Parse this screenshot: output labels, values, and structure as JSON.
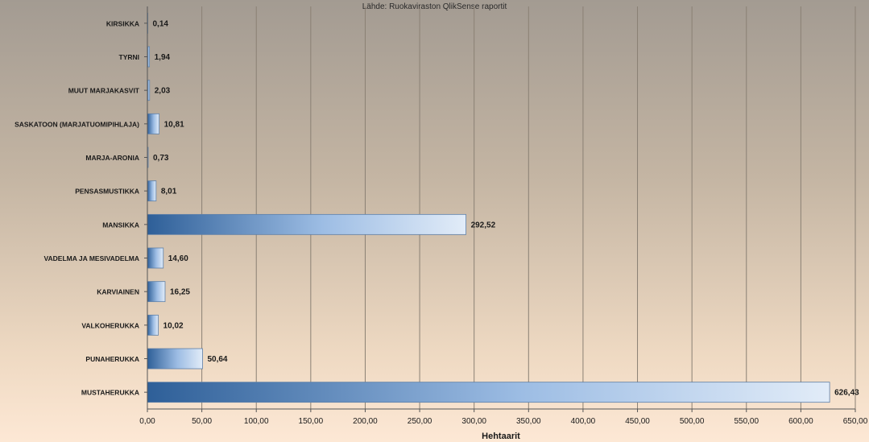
{
  "chart_data": {
    "type": "bar",
    "orientation": "horizontal",
    "subtitle": "Lähde: Ruokaviraston QlikSense raportit",
    "xlabel": "Hehtaarit",
    "ylabel": "",
    "xlim": [
      0,
      650
    ],
    "x_ticks": [
      "0,00",
      "50,00",
      "100,00",
      "150,00",
      "200,00",
      "250,00",
      "300,00",
      "350,00",
      "400,00",
      "450,00",
      "500,00",
      "550,00",
      "600,00",
      "650,00"
    ],
    "grid": "vertical",
    "legend": "none",
    "categories": [
      "KIRSIKKA",
      "TYRNI",
      "MUUT MARJAKASVIT",
      "SASKATOON (MARJATUOMIPIHLAJA)",
      "MARJA-ARONIA",
      "PENSASMUSTIKKA",
      "MANSIKKA",
      "VADELMA JA MESIVADELMA",
      "KARVIAINEN",
      "VALKOHERUKKA",
      "PUNAHERUKKA",
      "MUSTAHERUKKA"
    ],
    "values": [
      0.14,
      1.94,
      2.03,
      10.81,
      0.73,
      8.01,
      292.52,
      14.6,
      16.25,
      10.02,
      50.64,
      626.43
    ],
    "value_labels": [
      "0,14",
      "1,94",
      "2,03",
      "10,81",
      "0,73",
      "8,01",
      "292,52",
      "14,60",
      "16,25",
      "10,02",
      "50,64",
      "626,43"
    ],
    "colors": {
      "bar_dark": "#2e5f98",
      "bar_light": "#e2ecf8",
      "bar_stroke": "#5d7fa8",
      "grid": "#8a8074",
      "axis": "#555555",
      "text": "#1a1a1a"
    }
  }
}
